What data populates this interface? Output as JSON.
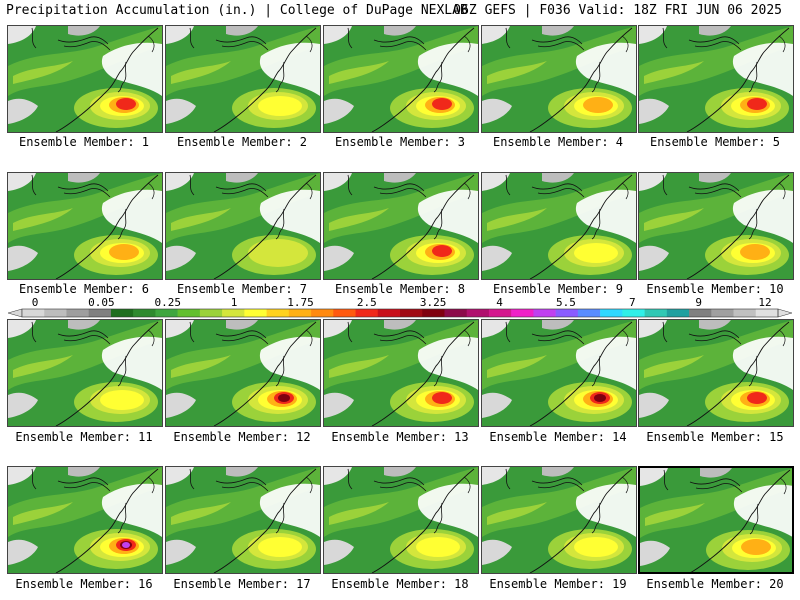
{
  "header": {
    "title_left": "Precipitation Accumulation (in.) | College of DuPage NEXLAB",
    "title_right": "06Z GEFS | F036 Valid: 18Z FRI JUN 06 2025"
  },
  "panels": [
    {
      "label": "Ensemble Member: 1",
      "intensity": 3
    },
    {
      "label": "Ensemble Member: 2",
      "intensity": 1
    },
    {
      "label": "Ensemble Member: 3",
      "intensity": 3
    },
    {
      "label": "Ensemble Member: 4",
      "intensity": 2
    },
    {
      "label": "Ensemble Member: 5",
      "intensity": 3
    },
    {
      "label": "Ensemble Member: 6",
      "intensity": 2
    },
    {
      "label": "Ensemble Member: 7",
      "intensity": 0
    },
    {
      "label": "Ensemble Member: 8",
      "intensity": 3
    },
    {
      "label": "Ensemble Member: 9",
      "intensity": 1
    },
    {
      "label": "Ensemble Member: 10",
      "intensity": 2
    },
    {
      "label": "Ensemble Member: 11",
      "intensity": 1
    },
    {
      "label": "Ensemble Member: 12",
      "intensity": 4
    },
    {
      "label": "Ensemble Member: 13",
      "intensity": 3
    },
    {
      "label": "Ensemble Member: 14",
      "intensity": 4
    },
    {
      "label": "Ensemble Member: 15",
      "intensity": 3
    },
    {
      "label": "Ensemble Member: 16",
      "intensity": 5
    },
    {
      "label": "Ensemble Member: 17",
      "intensity": 1
    },
    {
      "label": "Ensemble Member: 18",
      "intensity": 1
    },
    {
      "label": "Ensemble Member: 19",
      "intensity": 1
    },
    {
      "label": "Ensemble Member: 20",
      "intensity": 2
    }
  ],
  "colorbar": {
    "tick_labels": [
      "0",
      "0.05",
      "0.25",
      "1",
      "1.75",
      "2.5",
      "3.25",
      "4",
      "5.5",
      "7",
      "9",
      "12"
    ],
    "colors": [
      "#d8d8d8",
      "#bdbdbd",
      "#9e9e9e",
      "#808080",
      "#1e6e1e",
      "#2f8a2f",
      "#3fa63f",
      "#62bf2e",
      "#9bd23a",
      "#d4e63c",
      "#ffff33",
      "#ffd21f",
      "#ffb015",
      "#ff8a10",
      "#ff5a10",
      "#f0281a",
      "#c8101a",
      "#a00a14",
      "#800010",
      "#8c0a4a",
      "#b0106e",
      "#d4188e",
      "#f020c8",
      "#c040f0",
      "#8a5cff",
      "#5a8cff",
      "#30d8ff",
      "#30f0e8",
      "#30c8b4",
      "#20a0a0",
      "#808080",
      "#a0a0a0",
      "#c0c0c0",
      "#e0e0e0"
    ]
  }
}
